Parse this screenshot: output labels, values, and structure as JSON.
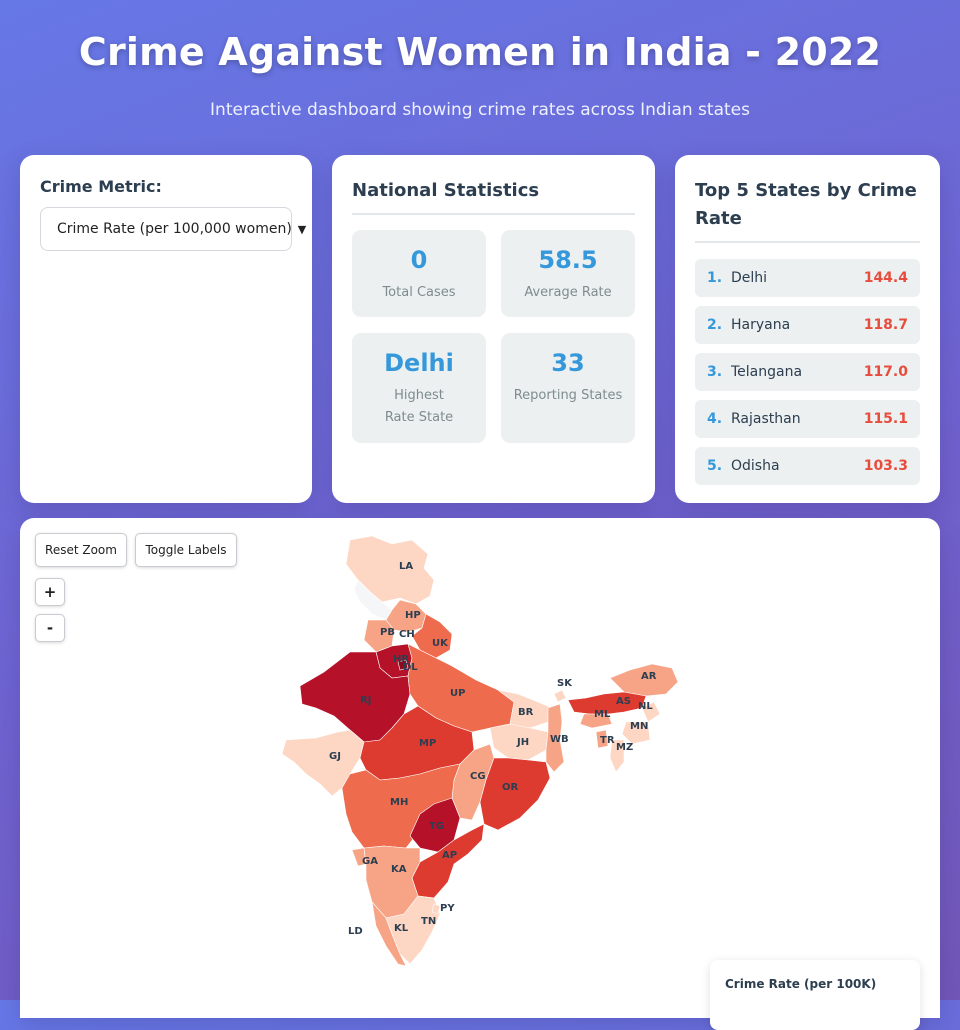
{
  "header": {
    "title": "Crime Against Women in India - 2022",
    "subtitle": "Interactive dashboard showing crime rates across Indian states"
  },
  "metric": {
    "label": "Crime Metric:",
    "selected": "Crime Rate (per 100,000 women)"
  },
  "stats": {
    "title": "National Statistics",
    "total_cases": {
      "value": "0",
      "label": "Total Cases"
    },
    "average_rate": {
      "value": "58.5",
      "label": "Average Rate"
    },
    "highest_state": {
      "value": "Delhi",
      "label": "Highest Rate State"
    },
    "reporting_states": {
      "value": "33",
      "label": "Reporting States"
    }
  },
  "top5": {
    "title": "Top 5 States by Crime Rate",
    "items": [
      {
        "rank": "1.",
        "name": "Delhi",
        "rate": "144.4"
      },
      {
        "rank": "2.",
        "name": "Haryana",
        "rate": "118.7"
      },
      {
        "rank": "3.",
        "name": "Telangana",
        "rate": "117.0"
      },
      {
        "rank": "4.",
        "name": "Rajasthan",
        "rate": "115.1"
      },
      {
        "rank": "5.",
        "name": "Odisha",
        "rate": "103.3"
      }
    ]
  },
  "map": {
    "reset_zoom": "Reset Zoom",
    "toggle_labels": "Toggle Labels",
    "zoom_in": "+",
    "zoom_out": "-",
    "legend_title": "Crime Rate (per 100K)",
    "state_labels": [
      "LA",
      "HP",
      "PB",
      "CH",
      "UK",
      "HR",
      "DL",
      "RJ",
      "UP",
      "SK",
      "AR",
      "AS",
      "NL",
      "ML",
      "MN",
      "BR",
      "TR",
      "MZ",
      "JH",
      "WB",
      "GJ",
      "MP",
      "CG",
      "OR",
      "MH",
      "TG",
      "AP",
      "GA",
      "KA",
      "PY",
      "TN",
      "KL",
      "LD"
    ],
    "colors": {
      "very_high": "#b5122a",
      "high": "#de3b30",
      "mid": "#ee6b4d",
      "low": "#f7a486",
      "very_low": "#fdd6c4",
      "minimal": "#fdeee6"
    }
  }
}
